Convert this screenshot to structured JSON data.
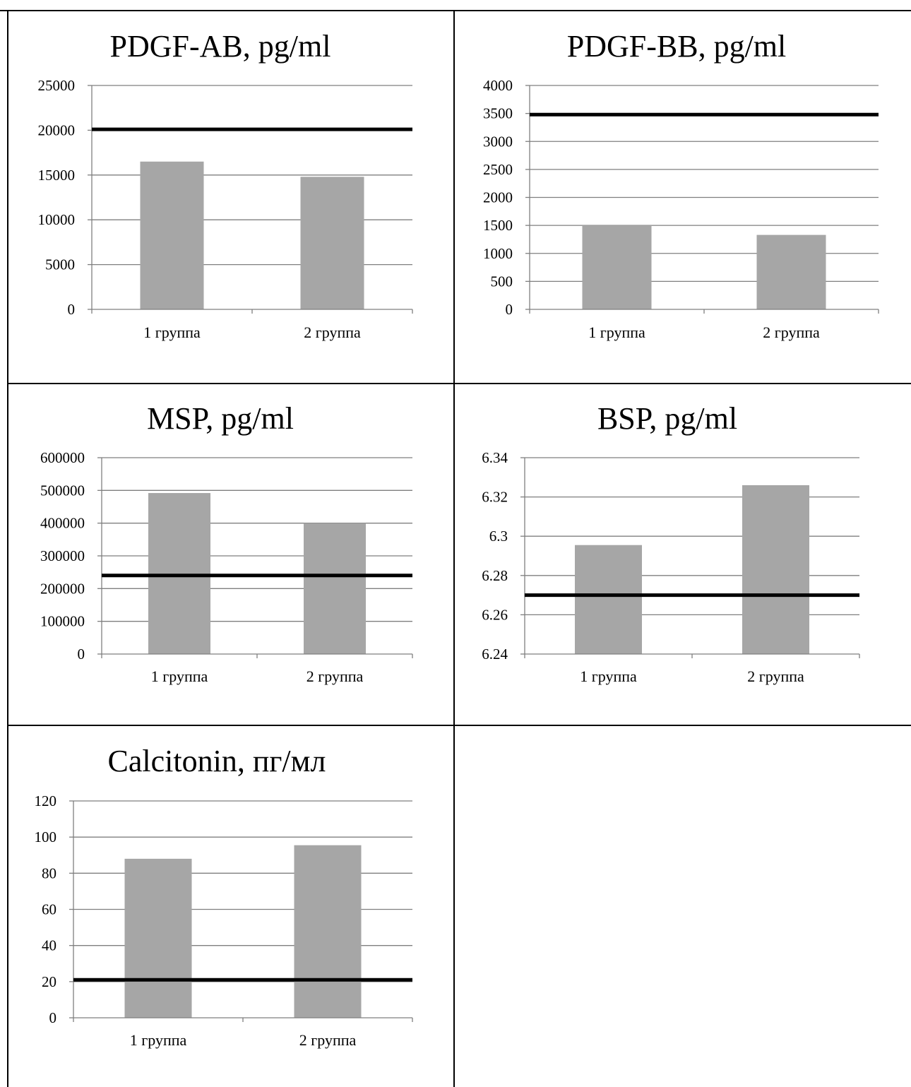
{
  "chart_data": [
    {
      "type": "bar",
      "title": "PDGF-AB, pg/ml",
      "categories": [
        "1 группа",
        "2 группа"
      ],
      "values": [
        16500,
        14800
      ],
      "reference_line": 20100,
      "ylim": [
        0,
        25000
      ],
      "yticks": [
        "0",
        "5000",
        "10000",
        "15000",
        "20000",
        "25000"
      ],
      "grid": true,
      "bar_color": "#a6a6a6",
      "line_color": "#000000"
    },
    {
      "type": "bar",
      "title": "PDGF-BB, pg/ml",
      "categories": [
        "1 группа",
        "2 группа"
      ],
      "values": [
        1500,
        1330
      ],
      "reference_line": 3480,
      "ylim": [
        0,
        4000
      ],
      "yticks": [
        "0",
        "500",
        "1000",
        "1500",
        "2000",
        "2500",
        "3000",
        "3500",
        "4000"
      ],
      "grid": true,
      "bar_color": "#a6a6a6",
      "line_color": "#000000"
    },
    {
      "type": "bar",
      "title": "MSP, pg/ml",
      "categories": [
        "1 группа",
        "2 группа"
      ],
      "values": [
        492000,
        400000
      ],
      "reference_line": 240000,
      "ylim": [
        0,
        600000
      ],
      "yticks": [
        "0",
        "100000",
        "200000",
        "300000",
        "400000",
        "500000",
        "600000"
      ],
      "grid": true,
      "bar_color": "#a6a6a6",
      "line_color": "#000000"
    },
    {
      "type": "bar",
      "title": "BSP, pg/ml",
      "categories": [
        "1 группа",
        "2 группа"
      ],
      "values": [
        6.2955,
        6.326
      ],
      "reference_line": 6.27,
      "ylim": [
        6.24,
        6.34
      ],
      "yticks": [
        "6.24",
        "6.26",
        "6.28",
        "6.3",
        "6.32",
        "6.34"
      ],
      "grid": true,
      "bar_color": "#a6a6a6",
      "line_color": "#000000"
    },
    {
      "type": "bar",
      "title": "Calcitonin, пг/мл",
      "categories": [
        "1 группа",
        "2 группа"
      ],
      "values": [
        88,
        95.5
      ],
      "reference_line": 21,
      "ylim": [
        0,
        120
      ],
      "yticks": [
        "0",
        "20",
        "40",
        "60",
        "80",
        "100",
        "120"
      ],
      "grid": true,
      "bar_color": "#a6a6a6",
      "line_color": "#000000"
    }
  ]
}
